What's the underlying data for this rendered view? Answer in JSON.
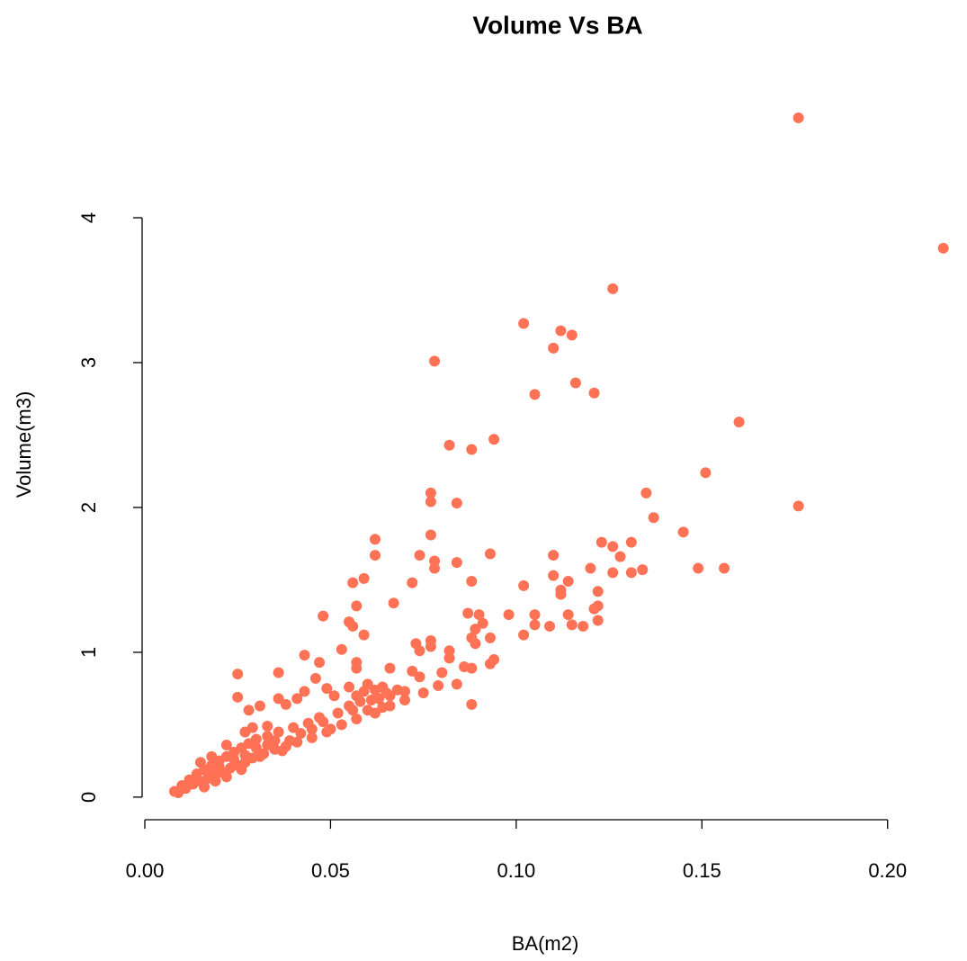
{
  "chart_data": {
    "type": "scatter",
    "title": "Volume Vs BA",
    "x_label": "BA(m2)",
    "y_label": "Volume(m3)",
    "color": "#ff7256",
    "xlim": [
      0,
      0.2238
    ],
    "ylim": [
      -0.156,
      4.876
    ],
    "xticks": [
      {
        "value": 0,
        "label": "0.00"
      },
      {
        "value": 0.05,
        "label": "0.05"
      },
      {
        "value": 0.1,
        "label": "0.10"
      },
      {
        "value": 0.15,
        "label": "0.15"
      },
      {
        "value": 0.2,
        "label": "0.20"
      }
    ],
    "yticks": [
      0,
      1,
      2,
      3,
      4
    ],
    "x": [
      0.176,
      0.215,
      0.126,
      0.102,
      0.112,
      0.115,
      0.11,
      0.078,
      0.116,
      0.105,
      0.121,
      0.16,
      0.094,
      0.082,
      0.088,
      0.151,
      0.135,
      0.077,
      0.077,
      0.084,
      0.176,
      0.137,
      0.145,
      0.077,
      0.062,
      0.123,
      0.126,
      0.131,
      0.062,
      0.074,
      0.093,
      0.11,
      0.128,
      0.084,
      0.078,
      0.078,
      0.12,
      0.149,
      0.156,
      0.134,
      0.131,
      0.126,
      0.11,
      0.059,
      0.056,
      0.072,
      0.088,
      0.114,
      0.102,
      0.112,
      0.122,
      0.112,
      0.057,
      0.067,
      0.122,
      0.121,
      0.087,
      0.09,
      0.098,
      0.105,
      0.114,
      0.048,
      0.055,
      0.056,
      0.091,
      0.105,
      0.109,
      0.115,
      0.118,
      0.122,
      0.089,
      0.088,
      0.093,
      0.059,
      0.102,
      0.089,
      0.073,
      0.077,
      0.077,
      0.053,
      0.074,
      0.082,
      0.043,
      0.082,
      0.094,
      0.088,
      0.093,
      0.086,
      0.047,
      0.057,
      0.066,
      0.057,
      0.025,
      0.036,
      0.072,
      0.046,
      0.074,
      0.08,
      0.084,
      0.06,
      0.055,
      0.064,
      0.049,
      0.043,
      0.07,
      0.025,
      0.036,
      0.051,
      0.041,
      0.038,
      0.031,
      0.028,
      0.088,
      0.066,
      0.063,
      0.058,
      0.055,
      0.06,
      0.052,
      0.047,
      0.044,
      0.04,
      0.036,
      0.033,
      0.03,
      0.028,
      0.026,
      0.024,
      0.022,
      0.02,
      0.018,
      0.016,
      0.014,
      0.012,
      0.01,
      0.008,
      0.009,
      0.011,
      0.013,
      0.015,
      0.017,
      0.019,
      0.021,
      0.023,
      0.025,
      0.027,
      0.029,
      0.032,
      0.035,
      0.038,
      0.041,
      0.045,
      0.049,
      0.053,
      0.057,
      0.062,
      0.066,
      0.07,
      0.075,
      0.079,
      0.035,
      0.03,
      0.027,
      0.024,
      0.02,
      0.017,
      0.014,
      0.012,
      0.029,
      0.027,
      0.022,
      0.018,
      0.015,
      0.033,
      0.062,
      0.065,
      0.068,
      0.057,
      0.059,
      0.061,
      0.064,
      0.056,
      0.045,
      0.042,
      0.039,
      0.048,
      0.05,
      0.037,
      0.033,
      0.031,
      0.026,
      0.022,
      0.019,
      0.016
    ],
    "y": [
      4.69,
      3.79,
      3.51,
      3.27,
      3.22,
      3.19,
      3.1,
      3.01,
      2.86,
      2.78,
      2.79,
      2.59,
      2.47,
      2.43,
      2.4,
      2.24,
      2.1,
      2.1,
      2.04,
      2.03,
      2.01,
      1.93,
      1.83,
      1.81,
      1.78,
      1.76,
      1.73,
      1.76,
      1.67,
      1.67,
      1.68,
      1.67,
      1.66,
      1.62,
      1.63,
      1.58,
      1.58,
      1.58,
      1.58,
      1.57,
      1.55,
      1.55,
      1.53,
      1.51,
      1.48,
      1.48,
      1.49,
      1.49,
      1.46,
      1.43,
      1.42,
      1.4,
      1.32,
      1.34,
      1.32,
      1.3,
      1.27,
      1.26,
      1.26,
      1.26,
      1.26,
      1.25,
      1.21,
      1.18,
      1.2,
      1.19,
      1.18,
      1.19,
      1.18,
      1.22,
      1.16,
      1.1,
      1.1,
      1.12,
      1.12,
      1.06,
      1.06,
      1.08,
      1.04,
      1.02,
      1.01,
      1.01,
      0.98,
      0.96,
      0.95,
      0.89,
      0.92,
      0.9,
      0.93,
      0.93,
      0.89,
      0.89,
      0.85,
      0.86,
      0.87,
      0.82,
      0.83,
      0.86,
      0.78,
      0.78,
      0.76,
      0.76,
      0.75,
      0.73,
      0.73,
      0.69,
      0.68,
      0.7,
      0.68,
      0.64,
      0.63,
      0.6,
      0.64,
      0.7,
      0.68,
      0.66,
      0.63,
      0.6,
      0.58,
      0.55,
      0.51,
      0.48,
      0.45,
      0.42,
      0.4,
      0.37,
      0.34,
      0.31,
      0.28,
      0.25,
      0.22,
      0.19,
      0.16,
      0.12,
      0.08,
      0.04,
      0.03,
      0.06,
      0.09,
      0.11,
      0.13,
      0.15,
      0.17,
      0.2,
      0.22,
      0.24,
      0.27,
      0.3,
      0.33,
      0.35,
      0.38,
      0.41,
      0.45,
      0.5,
      0.54,
      0.58,
      0.63,
      0.67,
      0.72,
      0.77,
      0.39,
      0.34,
      0.29,
      0.26,
      0.21,
      0.17,
      0.13,
      0.09,
      0.48,
      0.45,
      0.36,
      0.28,
      0.24,
      0.49,
      0.74,
      0.72,
      0.74,
      0.7,
      0.73,
      0.67,
      0.62,
      0.6,
      0.47,
      0.44,
      0.39,
      0.52,
      0.47,
      0.32,
      0.36,
      0.28,
      0.19,
      0.14,
      0.11,
      0.07
    ]
  }
}
